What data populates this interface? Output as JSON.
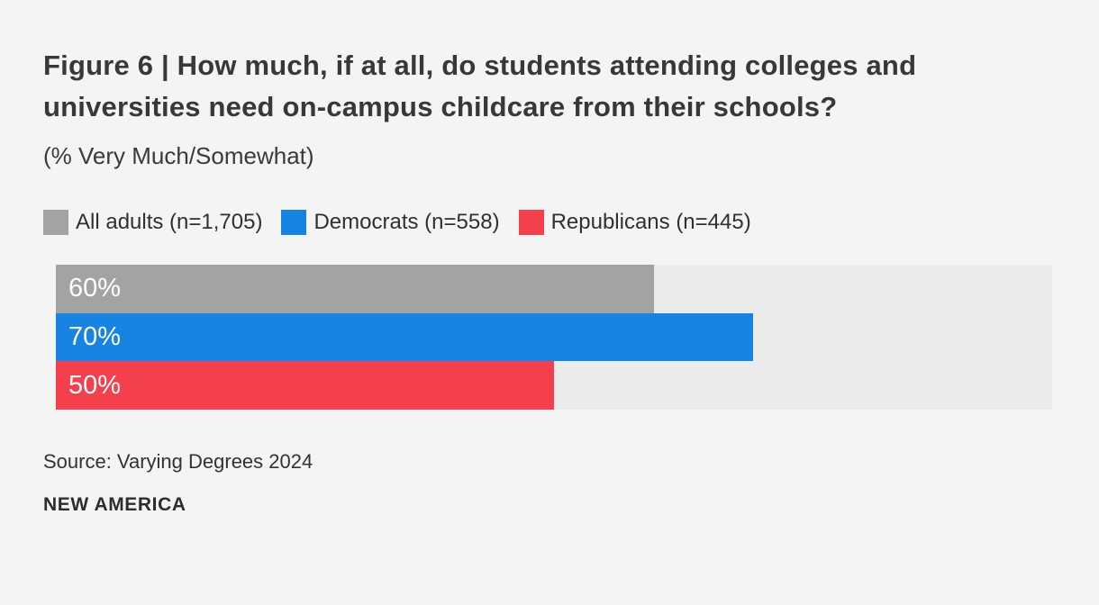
{
  "chart_data": {
    "type": "bar",
    "orientation": "horizontal",
    "title": "Figure 6 | How much, if at all, do students attending colleges and universities need on-campus childcare from their schools?",
    "subtitle": "(% Very Much/Somewhat)",
    "categories": [
      "All adults (n=1,705)",
      "Democrats (n=558)",
      "Republicans (n=445)"
    ],
    "values": [
      60,
      70,
      50
    ],
    "value_labels": [
      "60%",
      "70%",
      "50%"
    ],
    "xlim": [
      0,
      100
    ],
    "grid": false,
    "legend_position": "top",
    "colors": [
      "#a3a3a3",
      "#1784e4",
      "#f4404c"
    ],
    "track_color": "#ebebeb",
    "background_color": "#f4f4f4",
    "label_text_color": "#ffffff",
    "source": "Source: Varying Degrees 2024",
    "brand": "NEW AMERICA"
  }
}
